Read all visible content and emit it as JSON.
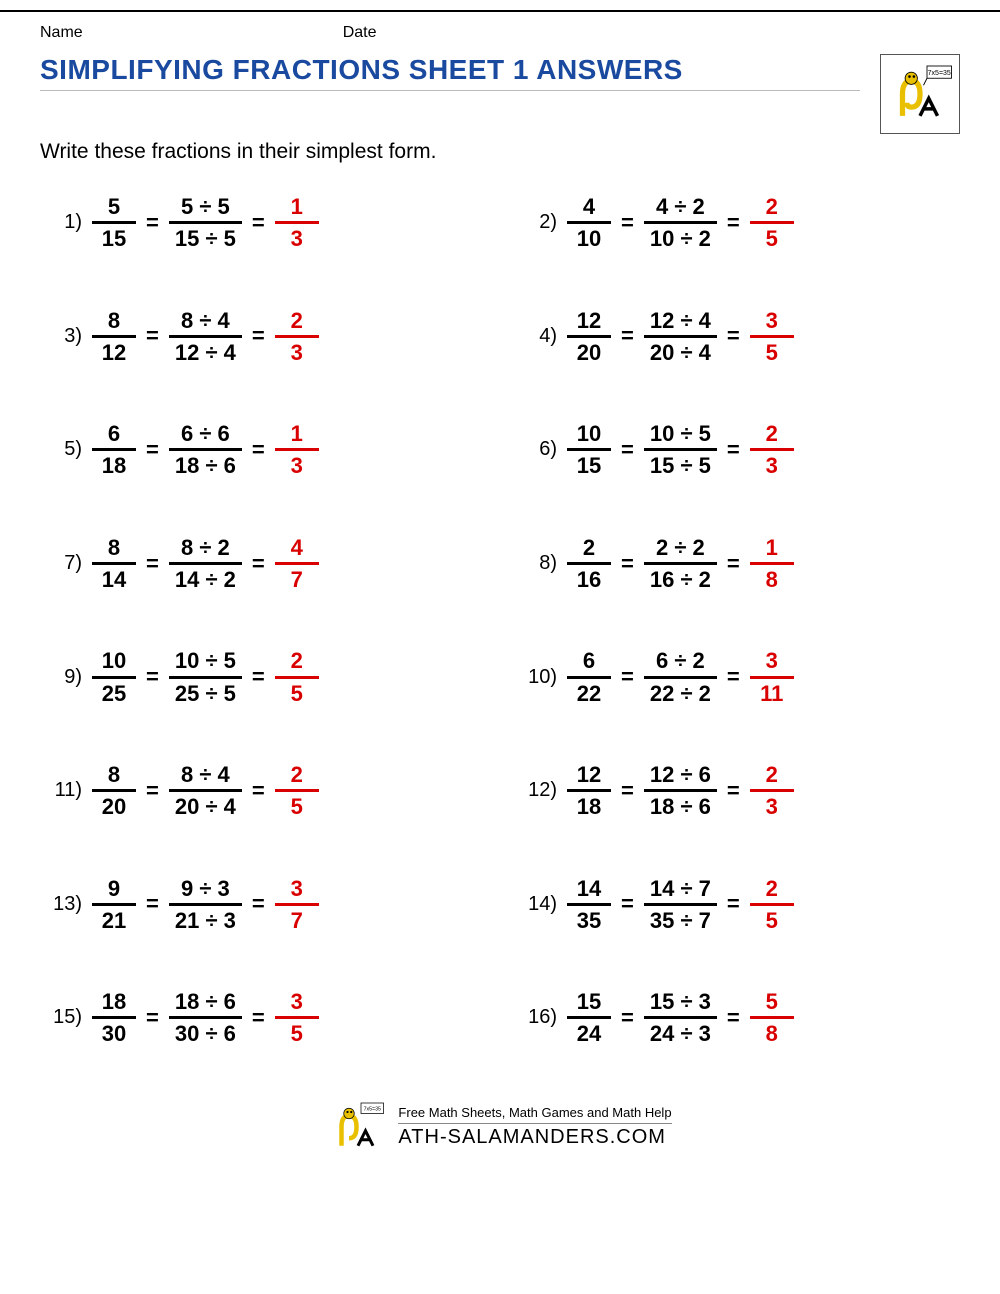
{
  "header": {
    "name_label": "Name",
    "date_label": "Date"
  },
  "title": "SIMPLIFYING FRACTIONS SHEET 1 ANSWERS",
  "instruction": "Write these fractions in their simplest form.",
  "colors": {
    "title": "#1a4aa0",
    "answer": "#d90000",
    "text": "#000000",
    "background": "#ffffff"
  },
  "typography": {
    "title_fontsize": 28,
    "body_fontsize": 22,
    "instruction_fontsize": 21,
    "fraction_fontweight": 700
  },
  "equals": "=",
  "divide": "÷",
  "problems": [
    {
      "n": "1)",
      "num": "5",
      "den": "15",
      "div": "5",
      "anum": "1",
      "aden": "3"
    },
    {
      "n": "2)",
      "num": "4",
      "den": "10",
      "div": "2",
      "anum": "2",
      "aden": "5"
    },
    {
      "n": "3)",
      "num": "8",
      "den": "12",
      "div": "4",
      "anum": "2",
      "aden": "3"
    },
    {
      "n": "4)",
      "num": "12",
      "den": "20",
      "div": "4",
      "anum": "3",
      "aden": "5"
    },
    {
      "n": "5)",
      "num": "6",
      "den": "18",
      "div": "6",
      "anum": "1",
      "aden": "3"
    },
    {
      "n": "6)",
      "num": "10",
      "den": "15",
      "div": "5",
      "anum": "2",
      "aden": "3"
    },
    {
      "n": "7)",
      "num": "8",
      "den": "14",
      "div": "2",
      "anum": "4",
      "aden": "7"
    },
    {
      "n": "8)",
      "num": "2",
      "den": "16",
      "div": "2",
      "anum": "1",
      "aden": "8"
    },
    {
      "n": "9)",
      "num": "10",
      "den": "25",
      "div": "5",
      "anum": "2",
      "aden": "5"
    },
    {
      "n": "10)",
      "num": "6",
      "den": "22",
      "div": "2",
      "anum": "3",
      "aden": "11"
    },
    {
      "n": "11)",
      "num": "8",
      "den": "20",
      "div": "4",
      "anum": "2",
      "aden": "5"
    },
    {
      "n": "12)",
      "num": "12",
      "den": "18",
      "div": "6",
      "anum": "2",
      "aden": "3"
    },
    {
      "n": "13)",
      "num": "9",
      "den": "21",
      "div": "3",
      "anum": "3",
      "aden": "7"
    },
    {
      "n": "14)",
      "num": "14",
      "den": "35",
      "div": "7",
      "anum": "2",
      "aden": "5"
    },
    {
      "n": "15)",
      "num": "18",
      "den": "30",
      "div": "6",
      "anum": "3",
      "aden": "5"
    },
    {
      "n": "16)",
      "num": "15",
      "den": "24",
      "div": "3",
      "anum": "5",
      "aden": "8"
    }
  ],
  "footer": {
    "line1": "Free Math Sheets, Math Games and Math Help",
    "line2": "ATH-SALAMANDERS.COM"
  },
  "logo_sign_text": "7x5=35"
}
